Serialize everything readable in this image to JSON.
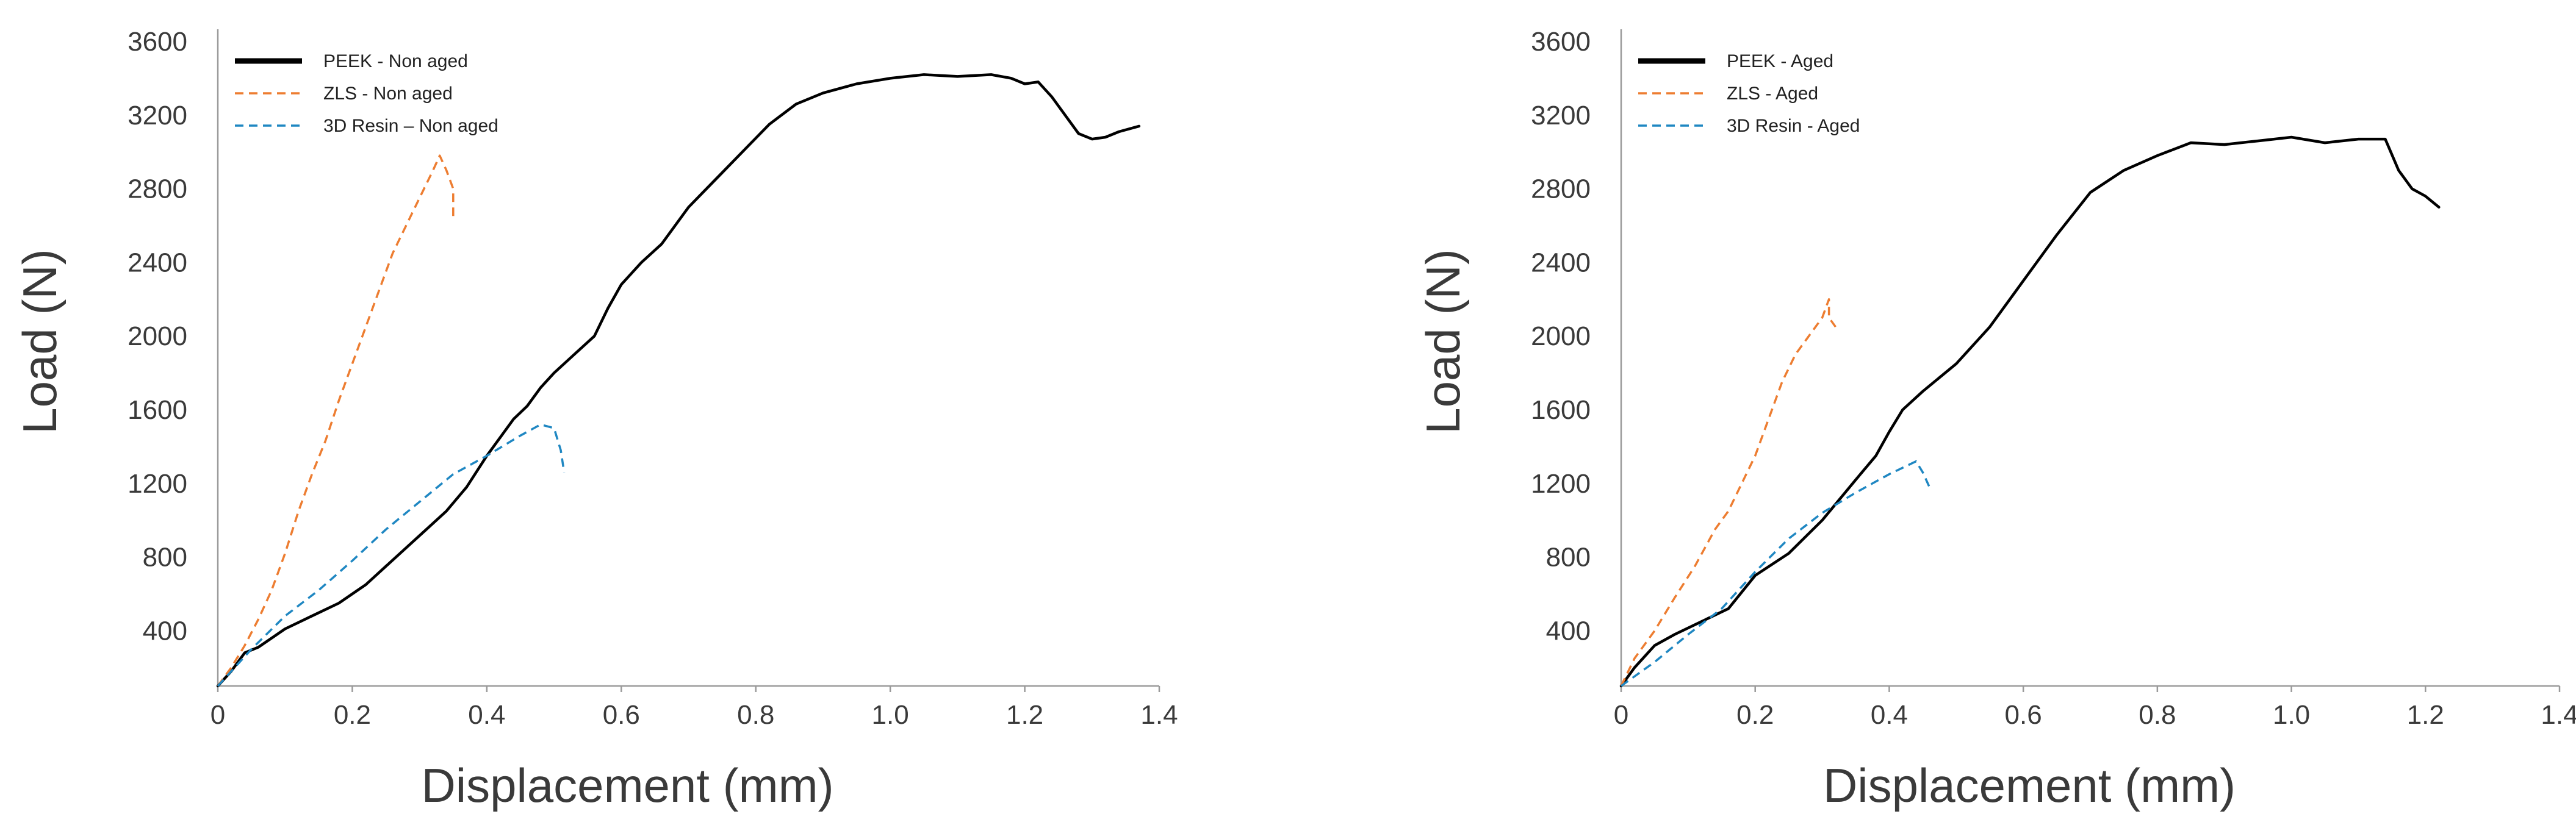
{
  "chart_data": [
    {
      "type": "line",
      "xlabel": "Displacement (mm)",
      "ylabel": "Load (N)",
      "xlim": [
        0,
        1.4
      ],
      "ylim": [
        100,
        3600
      ],
      "x_ticks": [
        0,
        0.2,
        0.4,
        0.6,
        0.8,
        1.0,
        1.2,
        1.4
      ],
      "x_tick_labels": [
        "0",
        "0.2",
        "0.4",
        "0.6",
        "0.8",
        "1.0",
        "1.2",
        "1.4"
      ],
      "y_ticks": [
        400,
        800,
        1200,
        1600,
        2000,
        2400,
        2800,
        3200,
        3600
      ],
      "y_tick_labels": [
        "400",
        "800",
        "1200",
        "1600",
        "2000",
        "2400",
        "2800",
        "3200",
        "3600"
      ],
      "grid": false,
      "legend_position": "top-left",
      "series": [
        {
          "name": "PEEK - Non aged",
          "color": "#000000",
          "style": "solid",
          "x": [
            0.0,
            0.02,
            0.04,
            0.06,
            0.08,
            0.1,
            0.14,
            0.18,
            0.2,
            0.22,
            0.25,
            0.28,
            0.31,
            0.34,
            0.37,
            0.4,
            0.42,
            0.44,
            0.46,
            0.48,
            0.5,
            0.53,
            0.56,
            0.58,
            0.6,
            0.63,
            0.66,
            0.7,
            0.74,
            0.78,
            0.82,
            0.86,
            0.9,
            0.95,
            1.0,
            1.05,
            1.1,
            1.15,
            1.18,
            1.2,
            1.22,
            1.24,
            1.26,
            1.28,
            1.3,
            1.32,
            1.34,
            1.37
          ],
          "y": [
            100,
            180,
            280,
            310,
            360,
            410,
            480,
            550,
            600,
            650,
            750,
            850,
            950,
            1050,
            1180,
            1350,
            1450,
            1550,
            1620,
            1720,
            1800,
            1900,
            2000,
            2150,
            2280,
            2400,
            2500,
            2700,
            2850,
            3000,
            3150,
            3260,
            3320,
            3370,
            3400,
            3420,
            3410,
            3420,
            3400,
            3370,
            3380,
            3300,
            3200,
            3100,
            3070,
            3080,
            3110,
            3140
          ]
        },
        {
          "name": "ZLS - Non aged",
          "color": "#ED7D31",
          "style": "dashed",
          "x": [
            0.0,
            0.02,
            0.04,
            0.06,
            0.08,
            0.1,
            0.12,
            0.14,
            0.16,
            0.18,
            0.2,
            0.22,
            0.24,
            0.26,
            0.28,
            0.3,
            0.32,
            0.33,
            0.34,
            0.35,
            0.35
          ],
          "y": [
            100,
            200,
            320,
            460,
            620,
            820,
            1050,
            1250,
            1430,
            1650,
            1850,
            2050,
            2250,
            2450,
            2600,
            2750,
            2900,
            2980,
            2900,
            2800,
            2640
          ]
        },
        {
          "name": "3D Resin – Non aged",
          "color": "#1F87C2",
          "style": "dashed",
          "x": [
            0.0,
            0.05,
            0.1,
            0.15,
            0.2,
            0.25,
            0.3,
            0.35,
            0.4,
            0.45,
            0.48,
            0.5,
            0.51,
            0.515
          ],
          "y": [
            100,
            300,
            480,
            620,
            780,
            950,
            1100,
            1250,
            1350,
            1460,
            1520,
            1500,
            1380,
            1260
          ]
        }
      ]
    },
    {
      "type": "line",
      "xlabel": "Displacement (mm)",
      "ylabel": "Load (N)",
      "xlim": [
        0,
        1.4
      ],
      "ylim": [
        100,
        3600
      ],
      "x_ticks": [
        0,
        0.2,
        0.4,
        0.6,
        0.8,
        1.0,
        1.2,
        1.4
      ],
      "x_tick_labels": [
        "0",
        "0.2",
        "0.4",
        "0.6",
        "0.8",
        "1.0",
        "1.2",
        "1.4"
      ],
      "y_ticks": [
        400,
        800,
        1200,
        1600,
        2000,
        2400,
        2800,
        3200,
        3600
      ],
      "y_tick_labels": [
        "400",
        "800",
        "1200",
        "1600",
        "2000",
        "2400",
        "2800",
        "3200",
        "3600"
      ],
      "grid": false,
      "legend_position": "top-left",
      "series": [
        {
          "name": "PEEK - Aged",
          "color": "#000000",
          "style": "solid",
          "x": [
            0.0,
            0.02,
            0.05,
            0.08,
            0.12,
            0.16,
            0.2,
            0.25,
            0.3,
            0.35,
            0.38,
            0.4,
            0.42,
            0.45,
            0.5,
            0.55,
            0.6,
            0.65,
            0.7,
            0.75,
            0.8,
            0.85,
            0.9,
            0.95,
            1.0,
            1.05,
            1.1,
            1.14,
            1.16,
            1.18,
            1.2,
            1.22
          ],
          "y": [
            100,
            200,
            320,
            380,
            450,
            520,
            700,
            820,
            1000,
            1220,
            1350,
            1480,
            1600,
            1700,
            1850,
            2050,
            2300,
            2550,
            2780,
            2900,
            2980,
            3050,
            3040,
            3060,
            3080,
            3050,
            3070,
            3070,
            2900,
            2800,
            2760,
            2700
          ]
        },
        {
          "name": "ZLS - Aged",
          "color": "#ED7D31",
          "style": "dashed",
          "x": [
            0.0,
            0.02,
            0.05,
            0.08,
            0.11,
            0.14,
            0.16,
            0.18,
            0.2,
            0.22,
            0.24,
            0.26,
            0.28,
            0.3,
            0.31,
            0.31,
            0.32
          ],
          "y": [
            100,
            250,
            400,
            580,
            750,
            950,
            1050,
            1200,
            1350,
            1550,
            1750,
            1900,
            2000,
            2100,
            2200,
            2100,
            2050
          ]
        },
        {
          "name": "3D Resin - Aged",
          "color": "#1F87C2",
          "style": "dashed",
          "x": [
            0.0,
            0.05,
            0.1,
            0.15,
            0.2,
            0.25,
            0.3,
            0.35,
            0.4,
            0.44,
            0.45,
            0.46
          ],
          "y": [
            100,
            230,
            380,
            520,
            720,
            900,
            1040,
            1150,
            1250,
            1320,
            1260,
            1180
          ]
        }
      ]
    }
  ]
}
